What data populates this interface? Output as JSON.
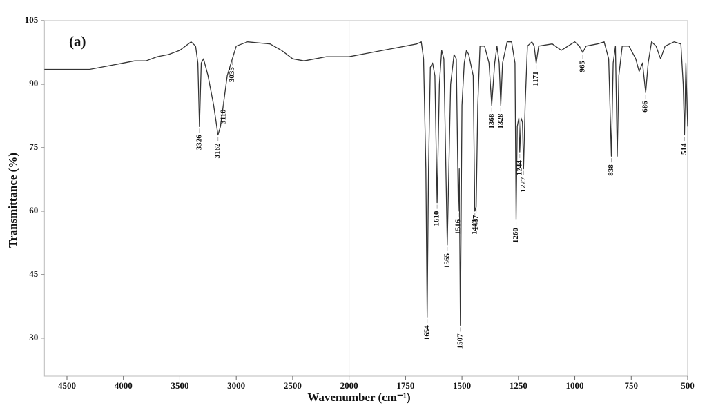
{
  "chart_data": {
    "type": "line",
    "annotation": "(a)",
    "xlabel": "Wavenumber (cm⁻¹)",
    "ylabel": "Transmittance (%)",
    "x": [
      4700,
      4500,
      4300,
      4100,
      4000,
      3900,
      3800,
      3700,
      3600,
      3500,
      3400,
      3360,
      3340,
      3326,
      3310,
      3290,
      3250,
      3200,
      3162,
      3140,
      3110,
      3080,
      3035,
      3000,
      2900,
      2700,
      2600,
      2500,
      2400,
      2300,
      2200,
      2000,
      1900,
      1800,
      1700,
      1680,
      1670,
      1660,
      1654,
      1648,
      1640,
      1630,
      1620,
      1610,
      1600,
      1590,
      1580,
      1565,
      1550,
      1535,
      1525,
      1516,
      1512,
      1507,
      1500,
      1490,
      1480,
      1470,
      1450,
      1443,
      1437,
      1430,
      1420,
      1400,
      1380,
      1368,
      1355,
      1345,
      1335,
      1328,
      1320,
      1300,
      1280,
      1265,
      1260,
      1255,
      1248,
      1244,
      1238,
      1232,
      1227,
      1220,
      1210,
      1190,
      1180,
      1171,
      1160,
      1100,
      1060,
      1000,
      980,
      965,
      950,
      900,
      870,
      850,
      838,
      830,
      820,
      812,
      805,
      790,
      760,
      730,
      715,
      700,
      686,
      675,
      660,
      640,
      620,
      600,
      560,
      530,
      520,
      514,
      508,
      500
    ],
    "series": [
      {
        "color": "#333333",
        "values": [
          93.5,
          93.5,
          93.5,
          94.5,
          95,
          95.5,
          95.5,
          96.5,
          97,
          98,
          100,
          99,
          95,
          80,
          95,
          96,
          92,
          85,
          78,
          80,
          86,
          92,
          96,
          99,
          100,
          99.5,
          98,
          96,
          95.5,
          96,
          96.5,
          96.5,
          97.5,
          98.5,
          99.5,
          100,
          96,
          70,
          35,
          70,
          94,
          95,
          92,
          62,
          90,
          98,
          96,
          52,
          90,
          97,
          96,
          60,
          70,
          33,
          85,
          95,
          98,
          97,
          92,
          60,
          61,
          85,
          99,
          99,
          95,
          85,
          95,
          99,
          95,
          85,
          95,
          100,
          100,
          95,
          58,
          80,
          82,
          74,
          82,
          81,
          70,
          85,
          99,
          100,
          99,
          95,
          99,
          99.5,
          98,
          100,
          99,
          97.5,
          99,
          99.5,
          100,
          96,
          73,
          95,
          99,
          73,
          92,
          99,
          99,
          96,
          93,
          95,
          88,
          95,
          100,
          99,
          96,
          99,
          100,
          99.5,
          90,
          78,
          95,
          80
        ]
      }
    ],
    "peaks": [
      3326,
      3162,
      3110,
      3035,
      1654,
      1610,
      1565,
      1516,
      1507,
      1443,
      1437,
      1368,
      1328,
      1260,
      1244,
      1227,
      1171,
      965,
      838,
      686,
      514
    ],
    "xlim": [
      4700,
      500
    ],
    "xticks": [
      4500,
      4000,
      3500,
      3000,
      2500,
      2000,
      1750,
      1500,
      1250,
      1000,
      750,
      500
    ],
    "ylim": [
      21,
      105
    ],
    "yticks": [
      30,
      45,
      60,
      75,
      90,
      105
    ]
  }
}
